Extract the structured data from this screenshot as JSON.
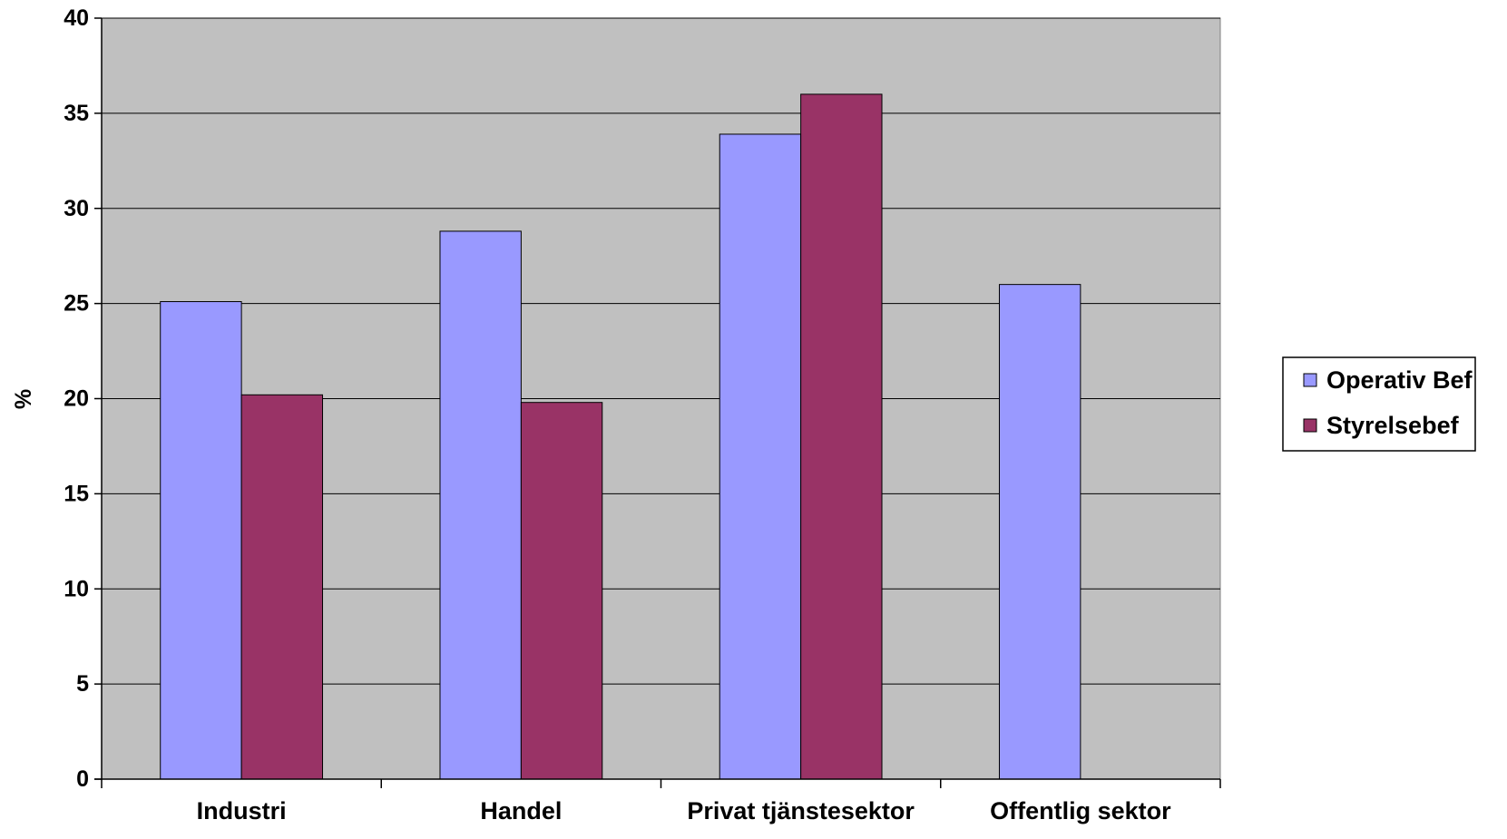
{
  "chart_data": {
    "type": "bar",
    "title": "",
    "xlabel": "",
    "ylabel": "%",
    "ylim": [
      0,
      40
    ],
    "yticks": [
      0,
      5,
      10,
      15,
      20,
      25,
      30,
      35,
      40
    ],
    "grid": true,
    "legend_position": "right",
    "categories": [
      "Industri",
      "Handel",
      "Privat tjänstesektor",
      "Offentlig sektor"
    ],
    "series": [
      {
        "name": "Operativ Bef",
        "color": "#9999ff",
        "values": [
          25.1,
          28.8,
          33.9,
          26.0
        ]
      },
      {
        "name": "Styrelsebef",
        "color": "#993366",
        "values": [
          20.2,
          19.8,
          36.0,
          null
        ]
      }
    ],
    "plot_background": "#c0c0c0"
  }
}
